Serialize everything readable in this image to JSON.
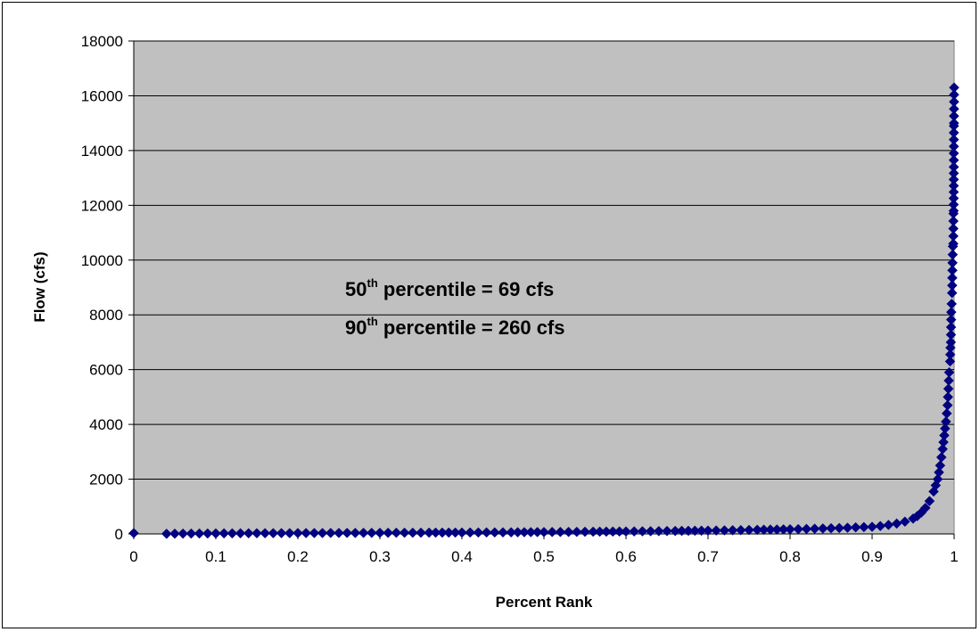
{
  "chart_data": {
    "type": "scatter",
    "xlabel": "Percent Rank",
    "ylabel": "Flow (cfs)",
    "xlim": [
      0,
      1
    ],
    "ylim": [
      0,
      18000
    ],
    "x_ticks": [
      "0",
      "0.1",
      "0.2",
      "0.3",
      "0.4",
      "0.5",
      "0.6",
      "0.7",
      "0.8",
      "0.9",
      "1"
    ],
    "y_ticks": [
      "0",
      "2000",
      "4000",
      "6000",
      "8000",
      "10000",
      "12000",
      "14000",
      "16000",
      "18000"
    ],
    "grid": "horizontal",
    "legend": "none",
    "plot_background": "#c0c0c0",
    "marker_color": "#000080",
    "marker": "diamond",
    "annotations": [
      {
        "pre": "50",
        "sup": "th",
        "post": " percentile = 69 cfs"
      },
      {
        "pre": "90",
        "sup": "th",
        "post": " percentile = 260 cfs"
      }
    ],
    "series": [
      {
        "points": [
          [
            0.0,
            30
          ],
          [
            0.04,
            5
          ],
          [
            0.05,
            10
          ],
          [
            0.06,
            12
          ],
          [
            0.07,
            14
          ],
          [
            0.08,
            16
          ],
          [
            0.09,
            18
          ],
          [
            0.1,
            20
          ],
          [
            0.12,
            22
          ],
          [
            0.14,
            25
          ],
          [
            0.16,
            27
          ],
          [
            0.18,
            29
          ],
          [
            0.2,
            31
          ],
          [
            0.22,
            33
          ],
          [
            0.25,
            36
          ],
          [
            0.28,
            39
          ],
          [
            0.3,
            41
          ],
          [
            0.33,
            44
          ],
          [
            0.36,
            47
          ],
          [
            0.4,
            51
          ],
          [
            0.43,
            55
          ],
          [
            0.46,
            60
          ],
          [
            0.5,
            69
          ],
          [
            0.53,
            75
          ],
          [
            0.56,
            82
          ],
          [
            0.6,
            90
          ],
          [
            0.63,
            100
          ],
          [
            0.66,
            110
          ],
          [
            0.7,
            122
          ],
          [
            0.73,
            135
          ],
          [
            0.76,
            150
          ],
          [
            0.8,
            170
          ],
          [
            0.83,
            190
          ],
          [
            0.86,
            215
          ],
          [
            0.88,
            240
          ],
          [
            0.9,
            260
          ],
          [
            0.91,
            290
          ],
          [
            0.92,
            330
          ],
          [
            0.93,
            380
          ],
          [
            0.94,
            450
          ],
          [
            0.95,
            560
          ],
          [
            0.955,
            650
          ],
          [
            0.96,
            780
          ],
          [
            0.965,
            950
          ],
          [
            0.97,
            1200
          ],
          [
            0.975,
            1550
          ],
          [
            0.98,
            2000
          ],
          [
            0.983,
            2500
          ],
          [
            0.986,
            3100
          ],
          [
            0.988,
            3600
          ],
          [
            0.99,
            4100
          ],
          [
            0.992,
            4700
          ],
          [
            0.993,
            5300
          ],
          [
            0.994,
            5900
          ],
          [
            0.995,
            6300
          ],
          [
            0.9955,
            6800
          ],
          [
            0.996,
            7000
          ],
          [
            0.9965,
            8100
          ],
          [
            0.997,
            8400
          ],
          [
            0.9975,
            8800
          ],
          [
            0.998,
            9900
          ],
          [
            0.9985,
            10500
          ],
          [
            0.999,
            10600
          ],
          [
            0.9992,
            11700
          ],
          [
            0.9994,
            11800
          ],
          [
            0.9996,
            13400
          ],
          [
            0.9997,
            14900
          ],
          [
            0.9998,
            15000
          ],
          [
            1.0,
            16300
          ]
        ]
      }
    ]
  }
}
